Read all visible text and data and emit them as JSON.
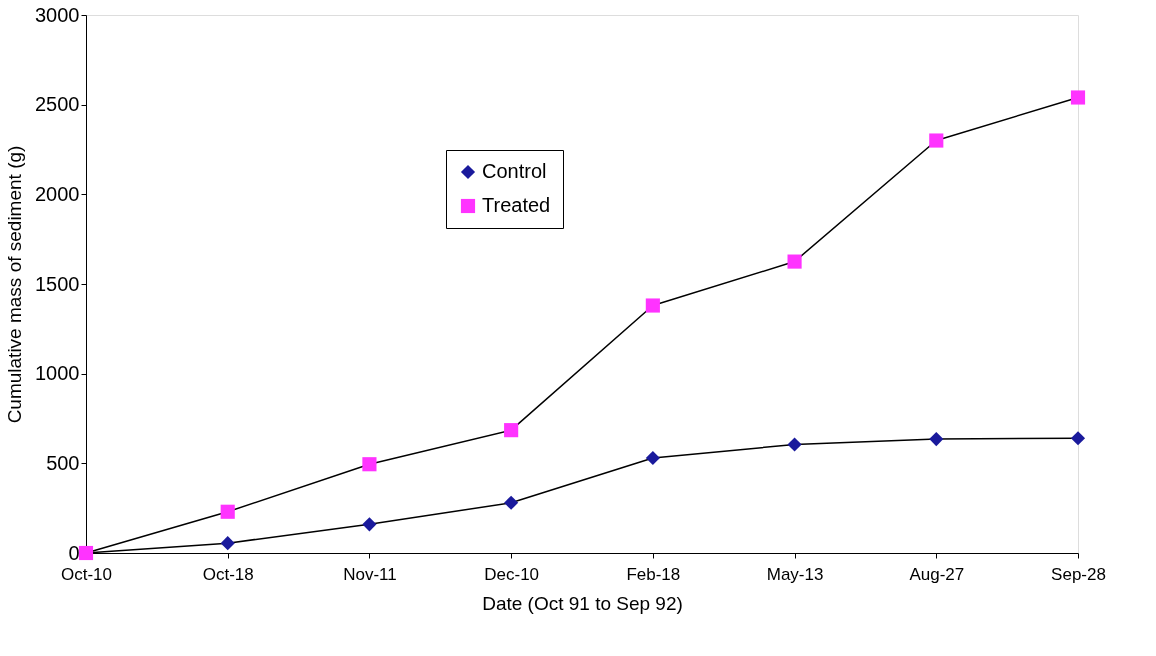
{
  "chart_data": {
    "type": "line",
    "xlabel": "Date (Oct 91 to Sep 92)",
    "ylabel": "Cumulative mass of sediment (g)",
    "categories": [
      "Oct-10",
      "Oct-18",
      "Nov-11",
      "Dec-10",
      "Feb-18",
      "May-13",
      "Aug-27",
      "Sep-28"
    ],
    "series": [
      {
        "name": "Control",
        "color": "#1a1a9c",
        "marker": "diamond",
        "values": [
          0,
          55,
          160,
          280,
          530,
          605,
          635,
          640
        ]
      },
      {
        "name": "Treated",
        "color": "#ff33ff",
        "marker": "square",
        "values": [
          0,
          230,
          495,
          685,
          1380,
          1625,
          2300,
          2540
        ]
      }
    ],
    "ylim": [
      0,
      3000
    ],
    "yticks": [
      0,
      500,
      1000,
      1500,
      2000,
      2500,
      3000
    ],
    "grid": false,
    "legend": "top",
    "line_style": "solid"
  }
}
